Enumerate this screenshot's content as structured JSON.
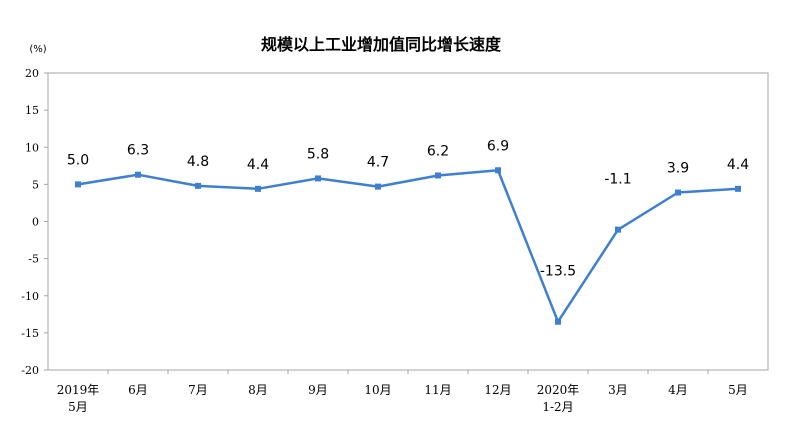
{
  "chart_data": {
    "type": "line",
    "title": "规模以上工业增加值同比增长速度",
    "unit_label": "(%)",
    "categories": [
      [
        "2019年",
        "5月"
      ],
      [
        "6月"
      ],
      [
        "7月"
      ],
      [
        "8月"
      ],
      [
        "9月"
      ],
      [
        "10月"
      ],
      [
        "11月"
      ],
      [
        "12月"
      ],
      [
        "2020年",
        "1-2月"
      ],
      [
        "3月"
      ],
      [
        "4月"
      ],
      [
        "5月"
      ]
    ],
    "values": [
      5.0,
      6.3,
      4.8,
      4.4,
      5.8,
      4.7,
      6.2,
      6.9,
      -13.5,
      -1.1,
      3.9,
      4.4
    ],
    "data_labels": [
      "5.0",
      "6.3",
      "4.8",
      "4.4",
      "5.8",
      "4.7",
      "6.2",
      "6.9",
      "-13.5",
      "-1.1",
      "3.9",
      "4.4"
    ],
    "ylim": [
      -20,
      20
    ],
    "yticks": [
      20,
      15,
      10,
      5,
      0,
      -5,
      -10,
      -15,
      -20
    ],
    "grid": false,
    "legend": "none",
    "colors": {
      "line": "#3f7fd1",
      "marker": "#3f7fd1",
      "axis": "#a6a6a6"
    }
  }
}
